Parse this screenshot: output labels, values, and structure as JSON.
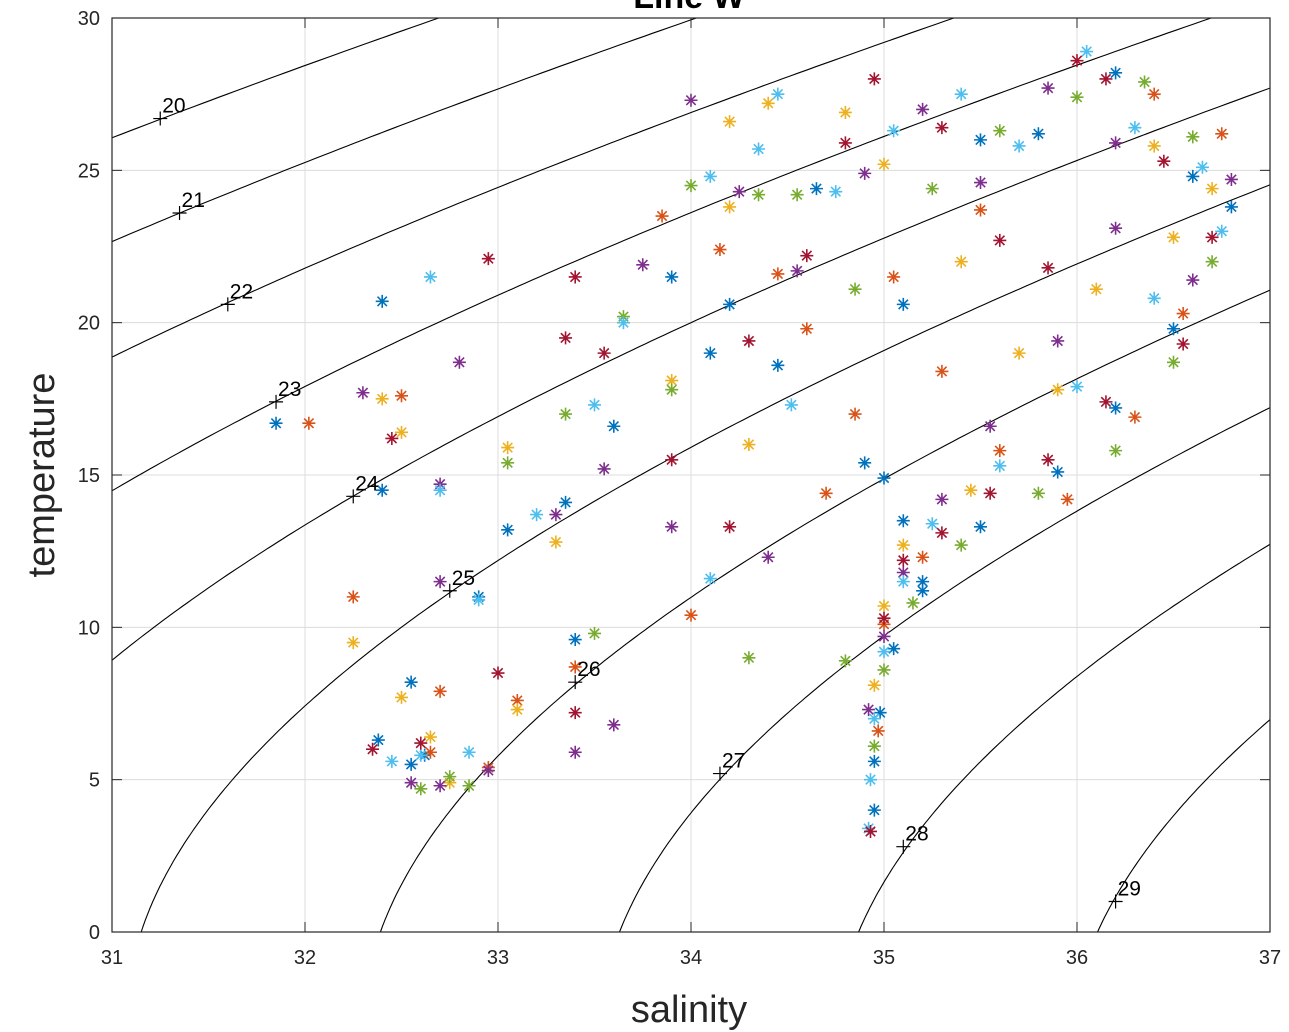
{
  "chart_data": {
    "type": "scatter",
    "title": "Line W",
    "xlabel": "salinity",
    "ylabel": "temperature",
    "xlim": [
      31,
      37
    ],
    "ylim": [
      0,
      30
    ],
    "x_ticks": [
      "31",
      "32",
      "33",
      "34",
      "35",
      "36",
      "37"
    ],
    "y_ticks": [
      "0",
      "5",
      "10",
      "15",
      "20",
      "25",
      "30"
    ],
    "grid": true,
    "legend": "none",
    "marker": "asterisk",
    "colors": [
      "#0072BD",
      "#D95319",
      "#EDB120",
      "#7E2F8E",
      "#77AC30",
      "#4DBEEE",
      "#A2142F"
    ],
    "density_contours": [
      {
        "label": "20",
        "label_at": [
          31.25,
          26.7
        ]
      },
      {
        "label": "21",
        "label_at": [
          31.35,
          23.6
        ]
      },
      {
        "label": "22",
        "label_at": [
          31.6,
          20.6
        ]
      },
      {
        "label": "23",
        "label_at": [
          31.85,
          17.4
        ]
      },
      {
        "label": "24",
        "label_at": [
          32.25,
          14.3
        ]
      },
      {
        "label": "25",
        "label_at": [
          32.75,
          11.2
        ]
      },
      {
        "label": "26",
        "label_at": [
          33.4,
          8.2
        ]
      },
      {
        "label": "27",
        "label_at": [
          34.15,
          5.2
        ]
      },
      {
        "label": "28",
        "label_at": [
          35.1,
          2.8
        ]
      },
      {
        "label": "29",
        "label_at": [
          36.2,
          1.0
        ]
      }
    ],
    "series": [
      {
        "color_index": 0,
        "points": [
          [
            32.38,
            6.3
          ],
          [
            32.55,
            5.5
          ],
          [
            32.62,
            5.8
          ],
          [
            33.05,
            13.2
          ],
          [
            33.35,
            14.1
          ],
          [
            33.6,
            16.6
          ],
          [
            34.1,
            19.0
          ],
          [
            34.2,
            20.6
          ],
          [
            34.45,
            18.6
          ],
          [
            34.65,
            24.4
          ],
          [
            34.9,
            15.4
          ],
          [
            35.0,
            14.9
          ],
          [
            35.1,
            13.5
          ],
          [
            35.2,
            11.2
          ],
          [
            35.1,
            20.6
          ],
          [
            35.5,
            26.0
          ],
          [
            35.8,
            26.2
          ],
          [
            36.2,
            28.2
          ],
          [
            36.6,
            24.8
          ],
          [
            36.8,
            23.8
          ],
          [
            36.5,
            19.8
          ],
          [
            36.2,
            17.2
          ],
          [
            35.9,
            15.1
          ],
          [
            35.5,
            13.3
          ],
          [
            35.2,
            11.5
          ],
          [
            35.05,
            9.3
          ],
          [
            34.98,
            7.2
          ],
          [
            34.95,
            5.6
          ],
          [
            34.95,
            4.0
          ],
          [
            33.9,
            21.5
          ],
          [
            32.4,
            20.7
          ],
          [
            31.85,
            16.7
          ],
          [
            32.4,
            14.5
          ],
          [
            32.55,
            8.2
          ],
          [
            32.9,
            11.0
          ],
          [
            33.4,
            9.6
          ]
        ]
      },
      {
        "color_index": 1,
        "points": [
          [
            32.02,
            16.7
          ],
          [
            32.5,
            17.6
          ],
          [
            32.25,
            11.0
          ],
          [
            32.7,
            7.9
          ],
          [
            32.95,
            5.4
          ],
          [
            33.85,
            23.5
          ],
          [
            34.15,
            22.4
          ],
          [
            34.45,
            21.6
          ],
          [
            34.6,
            19.8
          ],
          [
            34.85,
            17.0
          ],
          [
            35.05,
            21.5
          ],
          [
            35.3,
            18.4
          ],
          [
            35.6,
            15.8
          ],
          [
            35.95,
            14.2
          ],
          [
            36.3,
            16.9
          ],
          [
            36.55,
            20.3
          ],
          [
            36.75,
            26.2
          ],
          [
            36.4,
            27.5
          ],
          [
            35.5,
            23.7
          ],
          [
            35.2,
            12.3
          ],
          [
            35.0,
            10.1
          ],
          [
            34.97,
            6.6
          ],
          [
            33.4,
            8.7
          ],
          [
            33.1,
            7.6
          ],
          [
            34.0,
            10.4
          ],
          [
            34.7,
            14.4
          ],
          [
            32.65,
            5.9
          ]
        ]
      },
      {
        "color_index": 2,
        "points": [
          [
            32.25,
            9.5
          ],
          [
            32.5,
            16.4
          ],
          [
            32.4,
            17.5
          ],
          [
            32.5,
            7.7
          ],
          [
            33.1,
            7.3
          ],
          [
            33.05,
            15.9
          ],
          [
            34.2,
            26.6
          ],
          [
            34.4,
            27.2
          ],
          [
            34.8,
            26.9
          ],
          [
            35.0,
            25.2
          ],
          [
            35.4,
            22.0
          ],
          [
            35.7,
            19.0
          ],
          [
            36.1,
            21.1
          ],
          [
            36.4,
            25.8
          ],
          [
            36.7,
            24.4
          ],
          [
            36.5,
            22.8
          ],
          [
            35.9,
            17.8
          ],
          [
            35.45,
            14.5
          ],
          [
            35.1,
            12.7
          ],
          [
            35.0,
            10.7
          ],
          [
            34.95,
            8.1
          ],
          [
            34.3,
            16.0
          ],
          [
            34.2,
            23.8
          ],
          [
            33.9,
            18.1
          ],
          [
            32.65,
            6.4
          ],
          [
            32.75,
            4.9
          ],
          [
            33.3,
            12.8
          ]
        ]
      },
      {
        "color_index": 3,
        "points": [
          [
            32.3,
            17.7
          ],
          [
            32.8,
            18.7
          ],
          [
            32.7,
            14.7
          ],
          [
            32.7,
            11.5
          ],
          [
            32.55,
            4.9
          ],
          [
            32.7,
            4.8
          ],
          [
            33.3,
            13.7
          ],
          [
            33.55,
            15.2
          ],
          [
            33.75,
            21.9
          ],
          [
            34.0,
            27.3
          ],
          [
            34.25,
            24.3
          ],
          [
            34.55,
            21.7
          ],
          [
            34.9,
            24.9
          ],
          [
            35.2,
            27.0
          ],
          [
            35.5,
            24.6
          ],
          [
            35.85,
            27.7
          ],
          [
            36.2,
            25.9
          ],
          [
            36.6,
            21.4
          ],
          [
            36.8,
            24.7
          ],
          [
            36.2,
            23.1
          ],
          [
            35.9,
            19.4
          ],
          [
            35.55,
            16.6
          ],
          [
            35.3,
            14.2
          ],
          [
            35.1,
            11.8
          ],
          [
            35.0,
            9.7
          ],
          [
            34.92,
            7.3
          ],
          [
            34.4,
            12.3
          ],
          [
            33.9,
            13.3
          ],
          [
            33.6,
            6.8
          ],
          [
            33.4,
            5.9
          ],
          [
            32.95,
            5.3
          ]
        ]
      },
      {
        "color_index": 4,
        "points": [
          [
            32.6,
            4.7
          ],
          [
            32.75,
            5.1
          ],
          [
            32.85,
            4.8
          ],
          [
            33.05,
            15.4
          ],
          [
            33.35,
            17.0
          ],
          [
            33.65,
            20.2
          ],
          [
            34.0,
            24.5
          ],
          [
            34.35,
            24.2
          ],
          [
            34.55,
            24.2
          ],
          [
            34.85,
            21.1
          ],
          [
            35.25,
            24.4
          ],
          [
            35.6,
            26.3
          ],
          [
            36.0,
            27.4
          ],
          [
            36.35,
            27.9
          ],
          [
            36.6,
            26.1
          ],
          [
            36.7,
            22.0
          ],
          [
            36.5,
            18.7
          ],
          [
            36.2,
            15.8
          ],
          [
            35.8,
            14.4
          ],
          [
            35.4,
            12.7
          ],
          [
            35.15,
            10.8
          ],
          [
            35.0,
            8.6
          ],
          [
            34.95,
            6.1
          ],
          [
            34.8,
            8.9
          ],
          [
            34.3,
            9.0
          ],
          [
            33.9,
            17.8
          ],
          [
            33.5,
            9.8
          ]
        ]
      },
      {
        "color_index": 5,
        "points": [
          [
            32.45,
            5.6
          ],
          [
            32.6,
            5.8
          ],
          [
            32.85,
            5.9
          ],
          [
            32.65,
            21.5
          ],
          [
            32.7,
            14.5
          ],
          [
            32.9,
            10.9
          ],
          [
            33.2,
            13.7
          ],
          [
            33.65,
            20.0
          ],
          [
            34.1,
            24.8
          ],
          [
            34.35,
            25.7
          ],
          [
            34.45,
            27.5
          ],
          [
            34.75,
            24.3
          ],
          [
            35.05,
            26.3
          ],
          [
            35.4,
            27.5
          ],
          [
            35.7,
            25.8
          ],
          [
            36.05,
            28.9
          ],
          [
            36.3,
            26.4
          ],
          [
            36.65,
            25.1
          ],
          [
            36.75,
            23.0
          ],
          [
            36.4,
            20.8
          ],
          [
            36.0,
            17.9
          ],
          [
            35.6,
            15.3
          ],
          [
            35.25,
            13.4
          ],
          [
            35.1,
            11.5
          ],
          [
            35.0,
            9.2
          ],
          [
            34.95,
            7.0
          ],
          [
            34.93,
            5.0
          ],
          [
            34.92,
            3.4
          ],
          [
            34.52,
            17.3
          ],
          [
            34.1,
            11.6
          ],
          [
            33.5,
            17.3
          ]
        ]
      },
      {
        "color_index": 6,
        "points": [
          [
            32.35,
            6.0
          ],
          [
            32.6,
            6.2
          ],
          [
            32.95,
            22.1
          ],
          [
            33.4,
            21.5
          ],
          [
            33.35,
            19.5
          ],
          [
            33.55,
            19.0
          ],
          [
            33.9,
            15.5
          ],
          [
            34.3,
            19.4
          ],
          [
            34.6,
            22.2
          ],
          [
            34.8,
            25.9
          ],
          [
            34.95,
            28.0
          ],
          [
            35.3,
            26.4
          ],
          [
            35.6,
            22.7
          ],
          [
            35.85,
            21.8
          ],
          [
            36.0,
            28.6
          ],
          [
            36.15,
            28.0
          ],
          [
            36.45,
            25.3
          ],
          [
            36.7,
            22.8
          ],
          [
            36.55,
            19.3
          ],
          [
            36.15,
            17.4
          ],
          [
            35.85,
            15.5
          ],
          [
            35.55,
            14.4
          ],
          [
            35.3,
            13.1
          ],
          [
            35.1,
            12.2
          ],
          [
            35.0,
            10.3
          ],
          [
            34.93,
            3.3
          ],
          [
            33.4,
            7.2
          ],
          [
            33.0,
            8.5
          ],
          [
            34.2,
            13.3
          ],
          [
            32.45,
            16.2
          ]
        ]
      }
    ]
  }
}
